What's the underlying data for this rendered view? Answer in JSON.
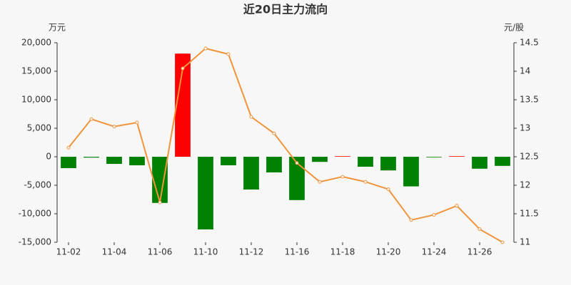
{
  "chart_data": {
    "type": "bar_line",
    "title": "近20日主力流向",
    "y_label": "万元",
    "y2_label": "元/股",
    "categories": [
      "11-02",
      null,
      "11-04",
      null,
      "11-06",
      null,
      "11-10",
      null,
      "11-12",
      null,
      "11-16",
      null,
      "11-18",
      null,
      "11-20",
      null,
      "11-24",
      null,
      "11-26",
      null
    ],
    "series": [
      {
        "type": "bar",
        "positive_color": "#ff0000",
        "negative_color": "#008000",
        "values": [
          -2000,
          -150,
          -1250,
          -1500,
          -8100,
          18100,
          -12750,
          -1500,
          -5750,
          -2750,
          -7600,
          -900,
          100,
          -1750,
          -2400,
          -5200,
          -100,
          100,
          -2100,
          -1600
        ]
      },
      {
        "type": "line",
        "axis": "y2",
        "color": "#f0943c",
        "values": [
          12.66,
          13.16,
          13.03,
          13.1,
          11.7,
          14.05,
          14.4,
          14.3,
          13.2,
          12.91,
          12.39,
          12.06,
          12.15,
          12.06,
          11.93,
          11.39,
          11.48,
          11.64,
          11.23,
          11.0
        ]
      }
    ],
    "ylim": [
      -15000,
      20000
    ],
    "yticks": [
      {
        "value": -15000,
        "label": "-15,000"
      },
      {
        "value": -10000,
        "label": "-10,000"
      },
      {
        "value": -5000,
        "label": "-5,000"
      },
      0,
      {
        "value": 5000,
        "label": "5,000"
      },
      {
        "value": 10000,
        "label": "10,000"
      },
      {
        "value": 15000,
        "label": "15,000"
      },
      {
        "value": 20000,
        "label": "20,000"
      }
    ],
    "y2lim": [
      11,
      14.5
    ],
    "y2ticks": [
      11,
      11.5,
      12,
      12.5,
      13,
      13.5,
      14,
      14.5
    ]
  }
}
